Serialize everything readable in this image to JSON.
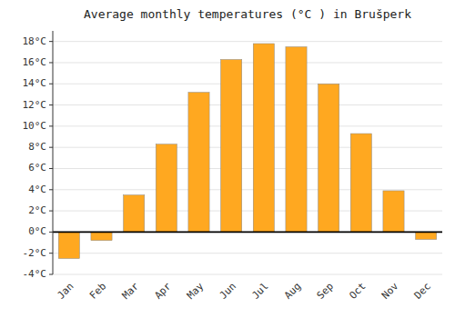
{
  "chart_data": {
    "type": "bar",
    "title": "Average monthly temperatures (°C ) in Brušperk",
    "categories": [
      "Jan",
      "Feb",
      "Mar",
      "Apr",
      "May",
      "Jun",
      "Jul",
      "Aug",
      "Sep",
      "Oct",
      "Nov",
      "Dec"
    ],
    "values": [
      -2.5,
      -0.8,
      3.5,
      8.3,
      13.2,
      16.3,
      17.8,
      17.5,
      14.0,
      9.3,
      3.9,
      -0.7
    ],
    "color": "#FFA820",
    "ylim": [
      -4,
      19
    ],
    "yticks": [
      {
        "value": -4,
        "label": "-4°C"
      },
      {
        "value": -2,
        "label": "-2°C"
      },
      {
        "value": 0,
        "label": "0°C"
      },
      {
        "value": 2,
        "label": "2°C"
      },
      {
        "value": 4,
        "label": "4°C"
      },
      {
        "value": 6,
        "label": "6°C"
      },
      {
        "value": 8,
        "label": "8°C"
      },
      {
        "value": 10,
        "label": "10°C"
      },
      {
        "value": 12,
        "label": "12°C"
      },
      {
        "value": 14,
        "label": "14°C"
      },
      {
        "value": 16,
        "label": "16°C"
      },
      {
        "value": 18,
        "label": "18°C"
      }
    ],
    "grid": true
  }
}
